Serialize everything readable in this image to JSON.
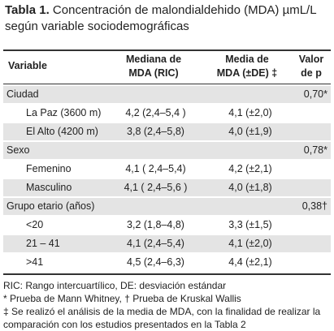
{
  "header": {
    "label": "Tabla 1.",
    "title": "Concentración de malondialdehido (MDA) µmL/L según variable sociodemográficas"
  },
  "table": {
    "columns": [
      [
        "Variable"
      ],
      [
        "Mediana de",
        "MDA (RIC)"
      ],
      [
        "Media de",
        "MDA (±DE) ‡"
      ],
      [
        "Valor",
        "de p"
      ]
    ],
    "rows": [
      {
        "label": "Ciudad",
        "p": "0,70*"
      },
      {
        "label": "La Paz (3600 m)",
        "median": "4,2 (2,4–5,4 )",
        "mean": "4,1 (±2,0)"
      },
      {
        "label": "El Alto (4200 m)",
        "median": "3,8 (2,4–5,8)",
        "mean": "4,0 (±1,9)"
      },
      {
        "label": "Sexo",
        "p": "0,78*"
      },
      {
        "label": "Femenino",
        "median": "4,1 ( 2,4–5,4)",
        "mean": "4,2 (±2,1)"
      },
      {
        "label": "Masculino",
        "median": "4,1 ( 2,4–5,6 )",
        "mean": "4,0 (±1,8)"
      },
      {
        "label": "Grupo etario (años)",
        "p": "0,38†"
      },
      {
        "label": "<20",
        "median": "3,2 (1,8–4,8)",
        "mean": "3,3 (±1,5)"
      },
      {
        "label": "21 – 41",
        "median": "4,1 (2,4–5,4)",
        "mean": "4,1 (±2,0)"
      },
      {
        "label": ">41",
        "median": "4,5 (2,4–6,3)",
        "mean": "4,4 (±2,1)"
      }
    ]
  },
  "footnotes": [
    "RIC: Rango intercuartílico, DE: desviación estándar",
    "* Prueba de Mann Whitney, † Prueba de Kruskal Wallis",
    "‡ Se realizó el análisis de la media de MDA, con la finalidad de realizar la",
    "comparación con los estudios presentados en la Tabla 2"
  ]
}
